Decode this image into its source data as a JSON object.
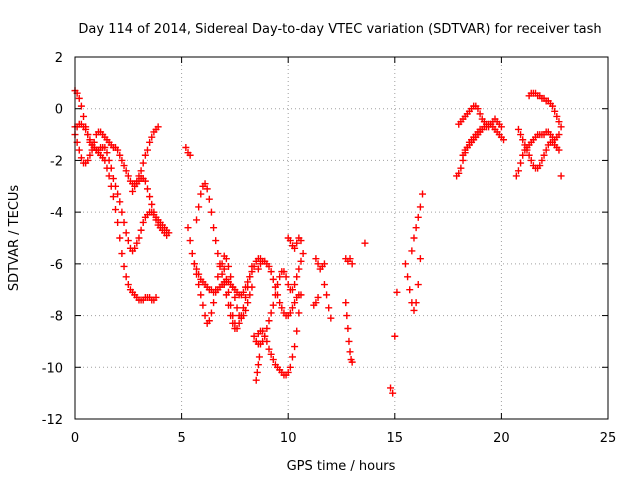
{
  "chart_data": {
    "type": "scatter",
    "title": "Day 114 of 2014, Sidereal Day-to-day VTEC variation (SDTVAR) for receiver tash",
    "xlabel": "GPS time / hours",
    "ylabel": "SDTVAR / TECUs",
    "xlim": [
      0,
      25
    ],
    "ylim": [
      -12,
      2
    ],
    "xticks": [
      0,
      5,
      10,
      15,
      20,
      25
    ],
    "yticks": [
      -12,
      -10,
      -8,
      -6,
      -4,
      -2,
      0,
      2
    ],
    "xtick_labels": [
      "0",
      "5",
      "10",
      "15",
      "20",
      "25"
    ],
    "ytick_labels": [
      "-12",
      "-10",
      "-8",
      "-6",
      "-4",
      "-2",
      "0",
      "2"
    ],
    "grid": true,
    "marker": "plus",
    "marker_color": "#ff0000",
    "series": [
      {
        "name": "",
        "color": "#ff0000",
        "x": [
          0.0,
          0.1,
          0.2,
          0.3,
          0.4,
          0.5,
          0.6,
          0.7,
          0.8,
          0.9,
          1.0,
          1.1,
          1.2,
          1.3,
          1.4,
          1.5,
          1.6,
          1.7,
          1.8,
          1.9,
          2.0,
          2.1,
          2.2,
          2.3,
          2.4,
          2.5,
          2.6,
          2.7,
          2.8,
          2.9,
          3.0,
          3.1,
          3.2,
          3.3,
          3.4,
          3.5,
          3.6,
          3.7,
          3.8
        ],
        "y": [
          0.7,
          0.6,
          0.4,
          0.1,
          -0.3,
          -0.7,
          -1.0,
          -1.3,
          -1.4,
          -1.5,
          -1.6,
          -1.7,
          -1.8,
          -1.9,
          -2.0,
          -2.3,
          -2.6,
          -3.0,
          -3.4,
          -3.9,
          -4.4,
          -5.0,
          -5.6,
          -6.1,
          -6.5,
          -6.8,
          -7.0,
          -7.1,
          -7.2,
          -7.3,
          -7.4,
          -7.4,
          -7.4,
          -7.3,
          -7.3,
          -7.3,
          -7.4,
          -7.4,
          -7.3
        ]
      },
      {
        "name": "",
        "color": "#ff0000",
        "x": [
          0.0,
          0.1,
          0.2,
          0.3,
          0.4,
          0.5,
          0.6,
          0.7,
          0.8,
          0.9,
          1.0,
          1.1,
          1.2,
          1.3,
          1.4,
          1.5,
          1.6,
          1.7,
          1.8,
          1.9,
          2.0,
          2.1,
          2.2,
          2.3,
          2.4,
          2.5,
          2.6,
          2.7,
          2.8,
          2.9,
          3.0,
          3.1,
          3.2,
          3.3,
          3.4,
          3.5,
          3.6,
          3.7,
          3.8,
          3.9,
          4.0,
          4.1,
          4.2,
          4.3
        ],
        "y": [
          -0.7,
          -0.7,
          -0.6,
          -0.6,
          -0.7,
          -0.8,
          -1.0,
          -1.2,
          -1.4,
          -1.5,
          -1.6,
          -1.6,
          -1.5,
          -1.5,
          -1.5,
          -1.7,
          -2.0,
          -2.3,
          -2.7,
          -3.0,
          -3.3,
          -3.6,
          -4.0,
          -4.4,
          -4.8,
          -5.1,
          -5.4,
          -5.5,
          -5.4,
          -5.2,
          -5.0,
          -4.7,
          -4.4,
          -4.2,
          -4.1,
          -4.0,
          -4.0,
          -4.1,
          -4.3,
          -4.5,
          -4.6,
          -4.7,
          -4.8,
          -4.9
        ]
      },
      {
        "name": "",
        "color": "#ff0000",
        "x": [
          0.0,
          0.1,
          0.2,
          0.3,
          0.4,
          0.5,
          0.6,
          0.7,
          0.8,
          0.9,
          1.0,
          1.1,
          1.2,
          1.3,
          1.4,
          1.5,
          1.6,
          1.7,
          1.8,
          1.9,
          2.0,
          2.1,
          2.2,
          2.3,
          2.4,
          2.5,
          2.6,
          2.7,
          2.8,
          2.9,
          3.0,
          3.1,
          3.2,
          3.3,
          3.4,
          3.5,
          3.6,
          3.7,
          3.8,
          3.9,
          4.0,
          4.1,
          4.2,
          4.3,
          4.4
        ],
        "y": [
          -1.0,
          -1.3,
          -1.6,
          -1.9,
          -2.1,
          -2.1,
          -2.0,
          -1.8,
          -1.6,
          -1.3,
          -1.0,
          -0.9,
          -0.9,
          -1.0,
          -1.1,
          -1.2,
          -1.3,
          -1.4,
          -1.5,
          -1.5,
          -1.6,
          -1.8,
          -2.0,
          -2.2,
          -2.4,
          -2.6,
          -2.8,
          -2.9,
          -2.9,
          -2.9,
          -2.8,
          -2.7,
          -2.7,
          -2.8,
          -3.1,
          -3.4,
          -3.7,
          -4.0,
          -4.2,
          -4.3,
          -4.4,
          -4.5,
          -4.6,
          -4.7,
          -4.8
        ]
      },
      {
        "name": "",
        "color": "#ff0000",
        "x": [
          2.7,
          2.8,
          2.9,
          3.0,
          3.1,
          3.2,
          3.3,
          3.4,
          3.5,
          3.6,
          3.7,
          3.8,
          3.9
        ],
        "y": [
          -3.2,
          -3.0,
          -2.8,
          -2.6,
          -2.4,
          -2.1,
          -1.8,
          -1.6,
          -1.3,
          -1.1,
          -0.9,
          -0.8,
          -0.7
        ]
      },
      {
        "name": "",
        "color": "#ff0000",
        "x": [
          5.2,
          5.3,
          5.4
        ],
        "y": [
          -1.5,
          -1.7,
          -1.8
        ]
      },
      {
        "name": "",
        "color": "#ff0000",
        "x": [
          5.3,
          5.4,
          5.5,
          5.6,
          5.7,
          5.8,
          5.9,
          6.0,
          6.1,
          6.2,
          6.3,
          6.4,
          6.5,
          6.6,
          6.7,
          6.8,
          6.9,
          7.0,
          7.1,
          7.2,
          7.3,
          7.4,
          7.5
        ],
        "y": [
          -4.6,
          -5.1,
          -5.6,
          -6.0,
          -6.4,
          -6.8,
          -7.2,
          -7.6,
          -8.0,
          -8.3,
          -8.2,
          -7.9,
          -7.5,
          -7.0,
          -6.5,
          -6.1,
          -6.0,
          -6.2,
          -6.6,
          -7.1,
          -7.6,
          -8.0,
          -8.3
        ]
      },
      {
        "name": "",
        "color": "#ff0000",
        "x": [
          5.7,
          5.8,
          5.9,
          6.0,
          6.1,
          6.2,
          6.3,
          6.4,
          6.5,
          6.6,
          6.7,
          6.8,
          6.9,
          7.0,
          7.1,
          7.2,
          7.3,
          7.4,
          7.5,
          7.6,
          7.7,
          7.8,
          7.9,
          8.0,
          8.1,
          8.2,
          8.3
        ],
        "y": [
          -4.3,
          -3.8,
          -3.3,
          -3.0,
          -2.9,
          -3.1,
          -3.5,
          -4.0,
          -4.6,
          -5.1,
          -5.6,
          -6.0,
          -6.4,
          -6.8,
          -7.2,
          -7.6,
          -8.0,
          -8.3,
          -8.5,
          -8.5,
          -8.3,
          -8.0,
          -7.7,
          -7.3,
          -6.9,
          -6.5,
          -6.1
        ]
      },
      {
        "name": "",
        "color": "#ff0000",
        "x": [
          5.6,
          5.7,
          5.8,
          5.9,
          6.0,
          6.1,
          6.2,
          6.3,
          6.4,
          6.5,
          6.6,
          6.7,
          6.8,
          6.9,
          7.0,
          7.1,
          7.2,
          7.3,
          7.4,
          7.5,
          7.6,
          7.7,
          7.8,
          7.9,
          8.0,
          8.1,
          8.2,
          8.3,
          8.4,
          8.5,
          8.6,
          8.7
        ],
        "y": [
          -6.0,
          -6.2,
          -6.4,
          -6.6,
          -6.7,
          -6.8,
          -6.9,
          -7.0,
          -7.0,
          -7.1,
          -7.1,
          -7.0,
          -6.9,
          -6.8,
          -6.7,
          -6.7,
          -6.7,
          -6.8,
          -6.9,
          -7.0,
          -7.1,
          -7.2,
          -7.2,
          -7.1,
          -6.9,
          -6.7,
          -6.5,
          -6.3,
          -6.1,
          -5.9,
          -5.8,
          -5.8
        ]
      },
      {
        "name": "",
        "color": "#ff0000",
        "x": [
          7.0,
          7.1,
          7.2,
          7.3,
          7.4,
          7.5,
          7.6,
          7.7,
          7.8,
          7.9,
          8.0,
          8.1,
          8.2,
          8.3
        ],
        "y": [
          -5.7,
          -5.8,
          -6.1,
          -6.5,
          -6.9,
          -7.3,
          -7.7,
          -8.0,
          -8.1,
          -8.0,
          -7.8,
          -7.5,
          -7.2,
          -6.9
        ]
      },
      {
        "name": "",
        "color": "#ff0000",
        "x": [
          8.5,
          8.6,
          8.7,
          8.8,
          8.9,
          9.0,
          9.1,
          9.2,
          9.3,
          9.4,
          9.5,
          9.6,
          9.7,
          9.8,
          9.9,
          10.0,
          10.1,
          10.2,
          10.3,
          10.4,
          10.5,
          10.6
        ],
        "y": [
          -9.0,
          -8.7,
          -8.6,
          -8.6,
          -8.8,
          -9.0,
          -9.3,
          -9.5,
          -9.7,
          -9.9,
          -10.0,
          -10.1,
          -10.2,
          -10.3,
          -10.3,
          -10.2,
          -10.0,
          -9.6,
          -9.2,
          -8.6,
          -7.9,
          -7.2
        ]
      },
      {
        "name": "",
        "color": "#ff0000",
        "x": [
          8.4,
          8.5,
          8.6,
          8.7,
          8.8,
          8.9,
          9.0,
          9.1,
          9.2,
          9.3,
          9.4,
          9.5,
          9.6,
          9.7,
          9.8,
          9.9,
          10.0,
          10.1,
          10.2,
          10.3,
          10.4,
          10.5,
          10.6,
          10.7
        ],
        "y": [
          -8.8,
          -9.0,
          -9.1,
          -9.1,
          -9.0,
          -8.8,
          -8.5,
          -8.2,
          -7.9,
          -7.6,
          -7.2,
          -6.8,
          -6.5,
          -6.3,
          -6.3,
          -6.5,
          -6.8,
          -7.0,
          -7.0,
          -6.8,
          -6.5,
          -6.2,
          -5.9,
          -5.6
        ]
      },
      {
        "name": "",
        "color": "#ff0000",
        "x": [
          8.6,
          8.7,
          8.8,
          8.9,
          9.0,
          9.1,
          9.2,
          9.3,
          9.4,
          9.5,
          9.6,
          9.7,
          9.8,
          9.9,
          10.0,
          10.1,
          10.2,
          10.3,
          10.4,
          10.5
        ],
        "y": [
          -6.2,
          -6.0,
          -5.9,
          -5.9,
          -6.0,
          -6.1,
          -6.3,
          -6.6,
          -6.9,
          -7.2,
          -7.5,
          -7.7,
          -7.9,
          -8.0,
          -8.0,
          -7.9,
          -7.7,
          -7.5,
          -7.3,
          -7.2
        ]
      },
      {
        "name": "",
        "color": "#ff0000",
        "x": [
          8.5,
          8.55,
          8.6,
          8.65
        ],
        "y": [
          -10.5,
          -10.2,
          -9.9,
          -9.6
        ]
      },
      {
        "name": "",
        "color": "#ff0000",
        "x": [
          10.0,
          10.1,
          10.2,
          10.3,
          10.4,
          10.5,
          10.6
        ],
        "y": [
          -5.0,
          -5.1,
          -5.3,
          -5.4,
          -5.2,
          -5.0,
          -5.1
        ]
      },
      {
        "name": "",
        "color": "#ff0000",
        "x": [
          11.3,
          11.4,
          11.5,
          11.6,
          11.7
        ],
        "y": [
          -5.8,
          -6.0,
          -6.2,
          -6.1,
          -6.0
        ]
      },
      {
        "name": "",
        "color": "#ff0000",
        "x": [
          11.2,
          11.3,
          11.4
        ],
        "y": [
          -7.6,
          -7.5,
          -7.3
        ]
      },
      {
        "name": "",
        "color": "#ff0000",
        "x": [
          11.7,
          11.8,
          11.9,
          12.0
        ],
        "y": [
          -6.8,
          -7.2,
          -7.7,
          -8.1
        ]
      },
      {
        "name": "",
        "color": "#ff0000",
        "x": [
          12.7,
          12.8,
          12.9,
          13.0
        ],
        "y": [
          -5.8,
          -5.9,
          -5.8,
          -6.0
        ]
      },
      {
        "name": "",
        "color": "#ff0000",
        "x": [
          12.7,
          12.75,
          12.8,
          12.85,
          12.9,
          12.95,
          13.0
        ],
        "y": [
          -7.5,
          -8.0,
          -8.5,
          -9.0,
          -9.4,
          -9.7,
          -9.8
        ]
      },
      {
        "name": "",
        "color": "#ff0000",
        "x": [
          13.6
        ],
        "y": [
          -5.2
        ]
      },
      {
        "name": "",
        "color": "#ff0000",
        "x": [
          14.8,
          14.9,
          15.0,
          15.1
        ],
        "y": [
          -10.8,
          -11.0,
          -8.8,
          -7.1
        ]
      },
      {
        "name": "",
        "color": "#ff0000",
        "x": [
          15.5,
          15.6,
          15.7,
          15.8,
          15.9,
          16.0,
          16.1,
          16.2
        ],
        "y": [
          -6.0,
          -6.5,
          -7.0,
          -7.5,
          -7.8,
          -7.5,
          -6.8,
          -5.8
        ]
      },
      {
        "name": "",
        "color": "#ff0000",
        "x": [
          15.8,
          15.9,
          16.0,
          16.1,
          16.2,
          16.3
        ],
        "y": [
          -5.5,
          -5.0,
          -4.6,
          -4.2,
          -3.8,
          -3.3
        ]
      },
      {
        "name": "",
        "color": "#ff0000",
        "x": [
          17.9,
          18.0,
          18.1,
          18.2,
          18.3,
          18.4,
          18.5,
          18.6,
          18.7,
          18.8,
          18.9,
          19.0,
          19.1,
          19.2,
          19.3,
          19.4,
          19.5,
          19.6,
          19.7,
          19.8,
          19.9,
          20.0,
          20.1
        ],
        "y": [
          -2.6,
          -2.5,
          -2.3,
          -2.0,
          -1.7,
          -1.5,
          -1.3,
          -1.2,
          -1.1,
          -1.0,
          -0.9,
          -0.8,
          -0.8,
          -0.7,
          -0.7,
          -0.6,
          -0.6,
          -0.7,
          -0.8,
          -0.9,
          -1.0,
          -1.1,
          -1.2
        ]
      },
      {
        "name": "",
        "color": "#ff0000",
        "x": [
          18.0,
          18.1,
          18.2,
          18.3,
          18.4,
          18.5,
          18.6,
          18.7,
          18.8,
          18.9,
          19.0,
          19.1,
          19.2,
          19.3,
          19.4,
          19.5,
          19.6,
          19.7,
          19.8,
          19.9,
          20.0
        ],
        "y": [
          -0.6,
          -0.5,
          -0.4,
          -0.3,
          -0.2,
          -0.1,
          0.0,
          0.1,
          0.1,
          0.0,
          -0.2,
          -0.4,
          -0.5,
          -0.6,
          -0.7,
          -0.6,
          -0.5,
          -0.4,
          -0.5,
          -0.6,
          -0.7
        ]
      },
      {
        "name": "",
        "color": "#ff0000",
        "x": [
          18.2,
          18.3,
          18.4,
          18.5,
          18.6,
          18.7,
          18.8,
          18.9,
          19.0
        ],
        "y": [
          -1.8,
          -1.6,
          -1.5,
          -1.4,
          -1.3,
          -1.2,
          -1.1,
          -1.0,
          -0.9
        ]
      },
      {
        "name": "",
        "color": "#ff0000",
        "x": [
          20.7,
          20.8,
          20.9,
          21.0,
          21.1,
          21.2,
          21.3,
          21.4,
          21.5,
          21.6,
          21.7,
          21.8,
          21.9,
          22.0,
          22.1,
          22.2,
          22.3,
          22.4,
          22.5,
          22.6,
          22.7
        ],
        "y": [
          -2.6,
          -2.4,
          -2.1,
          -1.8,
          -1.6,
          -1.5,
          -1.4,
          -1.3,
          -1.2,
          -1.1,
          -1.0,
          -1.0,
          -1.0,
          -1.0,
          -0.9,
          -0.9,
          -1.0,
          -1.1,
          -1.2,
          -1.1,
          -1.0
        ]
      },
      {
        "name": "",
        "color": "#ff0000",
        "x": [
          20.8,
          20.9,
          21.0,
          21.1,
          21.2,
          21.3,
          21.4,
          21.5,
          21.6,
          21.7,
          21.8,
          21.9,
          22.0,
          22.1,
          22.2,
          22.3,
          22.4,
          22.5,
          22.6,
          22.7
        ],
        "y": [
          -0.8,
          -1.0,
          -1.2,
          -1.4,
          -1.6,
          -1.8,
          -2.0,
          -2.2,
          -2.3,
          -2.3,
          -2.2,
          -2.0,
          -1.8,
          -1.6,
          -1.4,
          -1.3,
          -1.3,
          -1.4,
          -1.5,
          -1.6
        ]
      },
      {
        "name": "",
        "color": "#ff0000",
        "x": [
          21.3,
          21.4,
          21.5,
          21.6,
          21.7,
          21.8,
          21.9,
          22.0,
          22.1,
          22.2,
          22.3,
          22.4,
          22.5,
          22.6,
          22.7,
          22.8
        ],
        "y": [
          0.5,
          0.6,
          0.6,
          0.6,
          0.5,
          0.5,
          0.4,
          0.4,
          0.3,
          0.3,
          0.2,
          0.1,
          -0.1,
          -0.3,
          -0.5,
          -0.7
        ]
      },
      {
        "name": "",
        "color": "#ff0000",
        "x": [
          22.8
        ],
        "y": [
          -2.6
        ]
      }
    ]
  }
}
